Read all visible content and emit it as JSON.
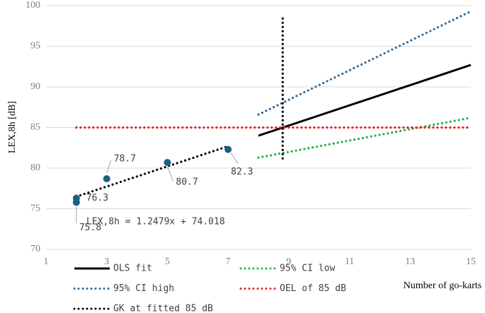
{
  "chart_data": {
    "type": "line",
    "y_label": "LEX,8h [dB]",
    "x_label": "Number of go-karts",
    "xlim": [
      1,
      15
    ],
    "xticks": [
      1,
      3,
      5,
      7,
      9,
      11,
      13,
      15
    ],
    "ylim": [
      70,
      100
    ],
    "yticks": [
      70,
      75,
      80,
      85,
      90,
      95,
      100
    ],
    "grid": true,
    "points": {
      "color": "#1f5f85",
      "x": [
        2,
        2,
        3,
        5,
        7
      ],
      "values": [
        76.3,
        75.8,
        78.7,
        80.7,
        82.3
      ]
    },
    "trendline": {
      "label": "LEX,8h = 1.2479x + 74.018",
      "color": "#000000",
      "style": "dotted",
      "x": [
        2,
        7
      ],
      "values": [
        76.5,
        82.7
      ]
    },
    "series": [
      {
        "name": "OLS fit",
        "color": "#000000",
        "style": "solid",
        "x": [
          8,
          15
        ],
        "values": [
          84.0,
          92.7
        ]
      },
      {
        "name": "95% CI low",
        "color": "#22b14c",
        "style": "dotted",
        "x": [
          8,
          15
        ],
        "values": [
          81.3,
          86.2
        ]
      },
      {
        "name": "95% CI high",
        "color": "#2e6a99",
        "style": "dotted",
        "x": [
          8,
          15
        ],
        "values": [
          86.6,
          99.3
        ]
      },
      {
        "name": "OEL of 85 dB",
        "color": "#e8201f",
        "style": "dotted",
        "x": [
          2,
          15
        ],
        "values": [
          85,
          85
        ]
      },
      {
        "name": "GK at fitted 85 dB",
        "color": "#000000",
        "style": "dotted",
        "x": [
          8.8,
          8.8
        ],
        "values": [
          81.2,
          98.8
        ]
      }
    ]
  }
}
